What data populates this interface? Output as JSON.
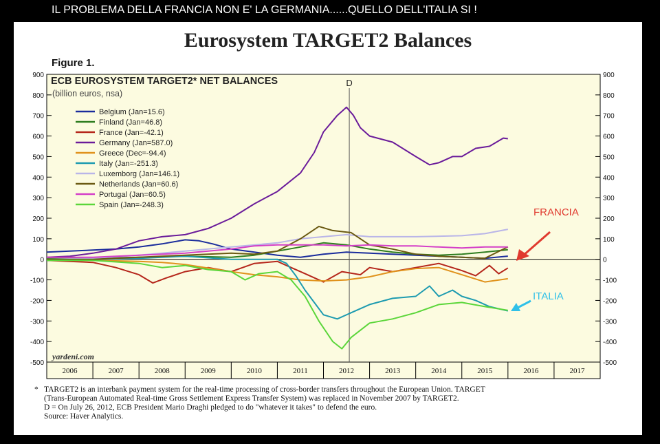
{
  "banner": "IL PROBLEMA DELLA FRANCIA NON E' LA GERMANIA......QUELLO DELL'ITALIA SI !",
  "title": "Eurosystem TARGET2 Balances",
  "figure_label": "Figure 1.",
  "chart_data": {
    "type": "line",
    "title": "ECB EUROSYSTEM TARGET2* NET BALANCES",
    "subtitle": "(billion euros, nsa)",
    "ylim": [
      -500,
      900
    ],
    "yticks": [
      -500,
      -400,
      -300,
      -200,
      -100,
      0,
      100,
      200,
      300,
      400,
      500,
      600,
      700,
      800,
      900
    ],
    "xlim": [
      2006,
      2018
    ],
    "xtick_labels": [
      "2006",
      "2007",
      "2008",
      "2009",
      "2010",
      "2011",
      "2012",
      "2013",
      "2014",
      "2015",
      "2016",
      "2017"
    ],
    "grid": false,
    "legend_position": "top-left",
    "event_line": {
      "x": 2012.56,
      "label": "D"
    },
    "watermark": "yardeni.com",
    "series": [
      {
        "name": "Belgium (Jan=15.6)",
        "color": "#1a2c9c",
        "points": [
          [
            2006.0,
            35
          ],
          [
            2006.5,
            40
          ],
          [
            2007.0,
            45
          ],
          [
            2007.5,
            50
          ],
          [
            2008.0,
            60
          ],
          [
            2008.5,
            75
          ],
          [
            2009.0,
            95
          ],
          [
            2009.3,
            90
          ],
          [
            2009.6,
            75
          ],
          [
            2010.0,
            50
          ],
          [
            2010.5,
            35
          ],
          [
            2011.0,
            20
          ],
          [
            2011.5,
            10
          ],
          [
            2012.0,
            25
          ],
          [
            2012.5,
            35
          ],
          [
            2013.0,
            30
          ],
          [
            2013.5,
            25
          ],
          [
            2014.0,
            20
          ],
          [
            2014.5,
            15
          ],
          [
            2015.0,
            10
          ],
          [
            2015.5,
            5
          ],
          [
            2016.0,
            15.6
          ]
        ]
      },
      {
        "name": "Finland (Jan=46.8)",
        "color": "#2e7d1f",
        "points": [
          [
            2006.0,
            5
          ],
          [
            2007.0,
            5
          ],
          [
            2008.0,
            10
          ],
          [
            2009.0,
            15
          ],
          [
            2010.0,
            10
          ],
          [
            2010.5,
            20
          ],
          [
            2011.0,
            40
          ],
          [
            2011.5,
            60
          ],
          [
            2012.0,
            80
          ],
          [
            2012.5,
            70
          ],
          [
            2013.0,
            50
          ],
          [
            2013.5,
            35
          ],
          [
            2014.0,
            25
          ],
          [
            2014.5,
            20
          ],
          [
            2015.0,
            25
          ],
          [
            2015.5,
            35
          ],
          [
            2016.0,
            46.8
          ]
        ]
      },
      {
        "name": "France (Jan=-42.1)",
        "color": "#b5261b",
        "points": [
          [
            2006.0,
            -5
          ],
          [
            2006.5,
            -10
          ],
          [
            2007.0,
            -15
          ],
          [
            2007.5,
            -40
          ],
          [
            2008.0,
            -75
          ],
          [
            2008.3,
            -115
          ],
          [
            2008.6,
            -90
          ],
          [
            2009.0,
            -60
          ],
          [
            2009.5,
            -40
          ],
          [
            2010.0,
            -60
          ],
          [
            2010.5,
            -20
          ],
          [
            2011.0,
            -10
          ],
          [
            2011.3,
            -40
          ],
          [
            2011.6,
            -70
          ],
          [
            2012.0,
            -110
          ],
          [
            2012.4,
            -60
          ],
          [
            2012.8,
            -75
          ],
          [
            2013.0,
            -40
          ],
          [
            2013.5,
            -60
          ],
          [
            2014.0,
            -40
          ],
          [
            2014.5,
            -20
          ],
          [
            2015.0,
            -55
          ],
          [
            2015.3,
            -80
          ],
          [
            2015.6,
            -30
          ],
          [
            2015.8,
            -70
          ],
          [
            2016.0,
            -42.1
          ]
        ]
      },
      {
        "name": "Germany (Jan=587.0)",
        "color": "#6a1b9a",
        "points": [
          [
            2006.0,
            10
          ],
          [
            2006.5,
            15
          ],
          [
            2007.0,
            30
          ],
          [
            2007.5,
            50
          ],
          [
            2008.0,
            90
          ],
          [
            2008.5,
            110
          ],
          [
            2009.0,
            120
          ],
          [
            2009.5,
            150
          ],
          [
            2010.0,
            200
          ],
          [
            2010.5,
            270
          ],
          [
            2011.0,
            330
          ],
          [
            2011.5,
            420
          ],
          [
            2011.8,
            520
          ],
          [
            2012.0,
            620
          ],
          [
            2012.3,
            700
          ],
          [
            2012.5,
            740
          ],
          [
            2012.65,
            700
          ],
          [
            2012.8,
            640
          ],
          [
            2013.0,
            600
          ],
          [
            2013.5,
            570
          ],
          [
            2014.0,
            500
          ],
          [
            2014.3,
            460
          ],
          [
            2014.5,
            470
          ],
          [
            2014.8,
            500
          ],
          [
            2015.0,
            500
          ],
          [
            2015.3,
            540
          ],
          [
            2015.6,
            550
          ],
          [
            2015.9,
            590
          ],
          [
            2016.0,
            587
          ]
        ]
      },
      {
        "name": "Greece (Dec=-94.4)",
        "color": "#e0921c",
        "points": [
          [
            2006.0,
            -5
          ],
          [
            2007.0,
            -5
          ],
          [
            2008.0,
            -10
          ],
          [
            2008.5,
            -15
          ],
          [
            2009.0,
            -25
          ],
          [
            2010.0,
            -60
          ],
          [
            2010.5,
            -75
          ],
          [
            2011.0,
            -85
          ],
          [
            2011.5,
            -100
          ],
          [
            2012.0,
            -105
          ],
          [
            2012.5,
            -100
          ],
          [
            2013.0,
            -85
          ],
          [
            2013.5,
            -60
          ],
          [
            2014.0,
            -45
          ],
          [
            2014.5,
            -40
          ],
          [
            2015.0,
            -75
          ],
          [
            2015.5,
            -110
          ],
          [
            2016.0,
            -94.4
          ]
        ]
      },
      {
        "name": "Italy (Jan=-251.3)",
        "color": "#1d9bb0",
        "points": [
          [
            2006.0,
            -5
          ],
          [
            2007.0,
            0
          ],
          [
            2008.0,
            5
          ],
          [
            2009.0,
            15
          ],
          [
            2010.0,
            0
          ],
          [
            2011.0,
            0
          ],
          [
            2011.2,
            -20
          ],
          [
            2011.4,
            -80
          ],
          [
            2011.6,
            -150
          ],
          [
            2011.8,
            -210
          ],
          [
            2012.0,
            -270
          ],
          [
            2012.3,
            -290
          ],
          [
            2012.6,
            -260
          ],
          [
            2013.0,
            -220
          ],
          [
            2013.5,
            -190
          ],
          [
            2014.0,
            -180
          ],
          [
            2014.3,
            -130
          ],
          [
            2014.5,
            -180
          ],
          [
            2014.8,
            -150
          ],
          [
            2015.0,
            -180
          ],
          [
            2015.3,
            -200
          ],
          [
            2015.6,
            -230
          ],
          [
            2016.0,
            -251.3
          ]
        ]
      },
      {
        "name": "Luxemborg (Jan=146.1)",
        "color": "#b9b5e8",
        "points": [
          [
            2006.0,
            0
          ],
          [
            2007.0,
            5
          ],
          [
            2008.0,
            20
          ],
          [
            2009.0,
            40
          ],
          [
            2010.0,
            60
          ],
          [
            2011.0,
            80
          ],
          [
            2011.5,
            100
          ],
          [
            2012.0,
            110
          ],
          [
            2012.5,
            120
          ],
          [
            2013.0,
            110
          ],
          [
            2014.0,
            110
          ],
          [
            2015.0,
            115
          ],
          [
            2015.5,
            125
          ],
          [
            2016.0,
            146.1
          ]
        ]
      },
      {
        "name": "Netherlands (Jan=60.6)",
        "color": "#6b5a13",
        "points": [
          [
            2006.0,
            0
          ],
          [
            2007.0,
            0
          ],
          [
            2008.0,
            10
          ],
          [
            2009.0,
            20
          ],
          [
            2010.0,
            30
          ],
          [
            2010.5,
            25
          ],
          [
            2011.0,
            40
          ],
          [
            2011.5,
            100
          ],
          [
            2011.9,
            160
          ],
          [
            2012.2,
            140
          ],
          [
            2012.6,
            130
          ],
          [
            2012.8,
            100
          ],
          [
            2013.0,
            70
          ],
          [
            2013.5,
            50
          ],
          [
            2014.0,
            25
          ],
          [
            2014.5,
            15
          ],
          [
            2015.0,
            10
          ],
          [
            2015.5,
            5
          ],
          [
            2016.0,
            60.6
          ]
        ]
      },
      {
        "name": "Portugal (Jan=60.5)",
        "color": "#d43fc8",
        "points": [
          [
            2006.0,
            10
          ],
          [
            2007.0,
            10
          ],
          [
            2008.0,
            20
          ],
          [
            2009.0,
            30
          ],
          [
            2010.0,
            50
          ],
          [
            2010.5,
            65
          ],
          [
            2011.0,
            70
          ],
          [
            2011.5,
            70
          ],
          [
            2012.0,
            70
          ],
          [
            2012.5,
            65
          ],
          [
            2013.0,
            70
          ],
          [
            2013.5,
            65
          ],
          [
            2014.0,
            65
          ],
          [
            2014.5,
            60
          ],
          [
            2015.0,
            55
          ],
          [
            2015.5,
            60
          ],
          [
            2016.0,
            60.5
          ]
        ]
      },
      {
        "name": "Spain (Jan=-248.3)",
        "color": "#5bd63a",
        "points": [
          [
            2006.0,
            -5
          ],
          [
            2007.0,
            -5
          ],
          [
            2008.0,
            -20
          ],
          [
            2008.5,
            -40
          ],
          [
            2009.0,
            -30
          ],
          [
            2009.5,
            -50
          ],
          [
            2010.0,
            -60
          ],
          [
            2010.3,
            -100
          ],
          [
            2010.6,
            -70
          ],
          [
            2011.0,
            -60
          ],
          [
            2011.3,
            -100
          ],
          [
            2011.6,
            -180
          ],
          [
            2011.9,
            -300
          ],
          [
            2012.2,
            -400
          ],
          [
            2012.4,
            -435
          ],
          [
            2012.6,
            -380
          ],
          [
            2013.0,
            -310
          ],
          [
            2013.5,
            -290
          ],
          [
            2014.0,
            -260
          ],
          [
            2014.5,
            -220
          ],
          [
            2015.0,
            -210
          ],
          [
            2015.5,
            -230
          ],
          [
            2016.0,
            -248.3
          ]
        ]
      }
    ]
  },
  "annotations": {
    "francia": "FRANCIA",
    "italia": "ITALIA",
    "francia_color": "#e03a2f",
    "italia_color": "#2fc0e8"
  },
  "notes": {
    "star": "*",
    "line1": "TARGET2 is an interbank payment system for the real-time processing of cross-border transfers throughout the European Union. TARGET",
    "line2": "(Trans-European Automated Real-time Gross Settlement Express Transfer System) was replaced in November 2007 by TARGET2.",
    "line3": "D = On July 26, 2012, ECB President Mario Draghi pledged to do \"whatever it takes\" to defend the euro.",
    "line4": "Source: Haver Analytics."
  }
}
